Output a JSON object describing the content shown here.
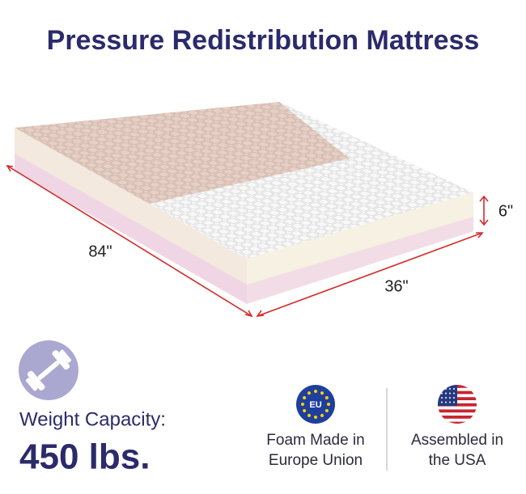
{
  "header": {
    "title": "Pressure Redistribution Mattress"
  },
  "dimensions": {
    "length": "84\"",
    "width": "36\"",
    "height": "6\""
  },
  "capacity": {
    "label": "Weight Capacity:",
    "value": "450 lbs."
  },
  "badges": [
    {
      "icon_label": "EU",
      "lines": [
        "Foam Made in",
        "Europe Union"
      ]
    },
    {
      "lines": [
        "Assembled in",
        "the USA"
      ]
    }
  ]
}
